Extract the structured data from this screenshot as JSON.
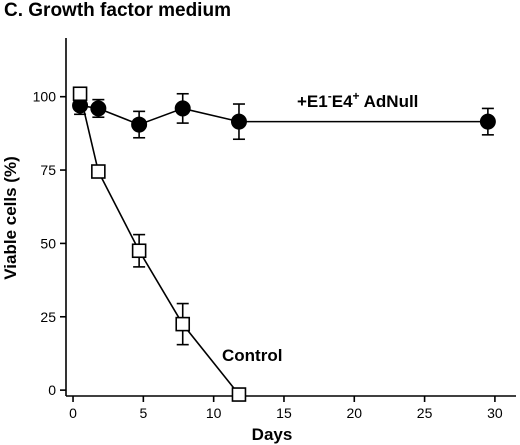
{
  "chart_data": {
    "type": "line",
    "title": "C. Growth factor medium",
    "xlabel": "Days",
    "ylabel": "Viable cells (%)",
    "xlim": [
      -0.5,
      31.5
    ],
    "ylim": [
      -2,
      120
    ],
    "xticks": [
      0,
      5,
      10,
      15,
      20,
      25,
      30
    ],
    "yticks": [
      0,
      25,
      50,
      75,
      100
    ],
    "grid": false,
    "series": [
      {
        "name": "+E1⁻E4⁺ AdNull",
        "label_parts": {
          "prefix": "+E1",
          "sup1": "-",
          "middle": "E4",
          "sup2": "+",
          "suffix": " AdNull"
        },
        "marker": "filled-circle",
        "color": "#000000",
        "x": [
          0.5,
          1.8,
          4.7,
          7.8,
          11.8,
          29.5
        ],
        "y": [
          97,
          96,
          90.5,
          96,
          91.5,
          91.5
        ],
        "err": [
          3,
          3,
          4.5,
          5,
          6,
          4.5
        ]
      },
      {
        "name": "Control",
        "marker": "open-square",
        "color": "#000000",
        "x": [
          0.5,
          1.8,
          4.7,
          7.8,
          11.8
        ],
        "y": [
          101,
          74.5,
          47.5,
          22.5,
          -1.5
        ],
        "err": [
          0,
          0,
          5.5,
          7,
          0
        ]
      }
    ]
  }
}
